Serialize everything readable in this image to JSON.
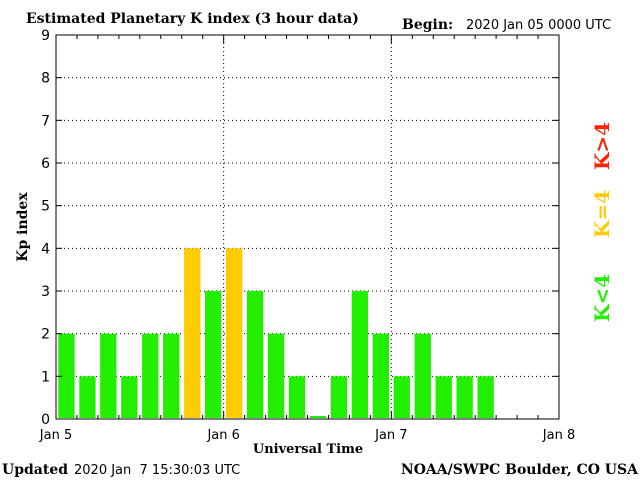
{
  "header": {
    "title": "Estimated Planetary K index (3 hour data)",
    "begin_label": "Begin:",
    "begin_value": "2020 Jan 05 0000 UTC"
  },
  "footer": {
    "updated_label": "Updated",
    "updated_value": "2020 Jan  7 15:30:03 UTC",
    "source": "NOAA/SWPC Boulder, CO USA"
  },
  "legend": [
    {
      "label": "K<4",
      "color": "#22ee00"
    },
    {
      "label": "K=4",
      "color": "#ffcc00"
    },
    {
      "label": "K>4",
      "color": "#ff2200"
    }
  ],
  "chart_data": {
    "type": "bar",
    "title": "Estimated Planetary K index (3 hour data)",
    "xlabel": "Universal Time",
    "ylabel": "Kp index",
    "ylim": [
      0,
      9
    ],
    "yticks": [
      0,
      1,
      2,
      3,
      4,
      5,
      6,
      7,
      8,
      9
    ],
    "x_range_hours": [
      0,
      72
    ],
    "x_tick_labels": [
      {
        "hour": 0,
        "label": "Jan 5"
      },
      {
        "hour": 24,
        "label": "Jan 6"
      },
      {
        "hour": 48,
        "label": "Jan 7"
      },
      {
        "hour": 72,
        "label": "Jan 8"
      }
    ],
    "bar_interval_hours": 3,
    "values": [
      2,
      1,
      2,
      1,
      2,
      2,
      4,
      3,
      4,
      3,
      2,
      1,
      0.07,
      1,
      3,
      2,
      1,
      2,
      1,
      1,
      1
    ],
    "grid": true,
    "colors": {
      "low": "#22ee00",
      "equal4": "#ffcc00",
      "high": "#ff2200"
    }
  }
}
